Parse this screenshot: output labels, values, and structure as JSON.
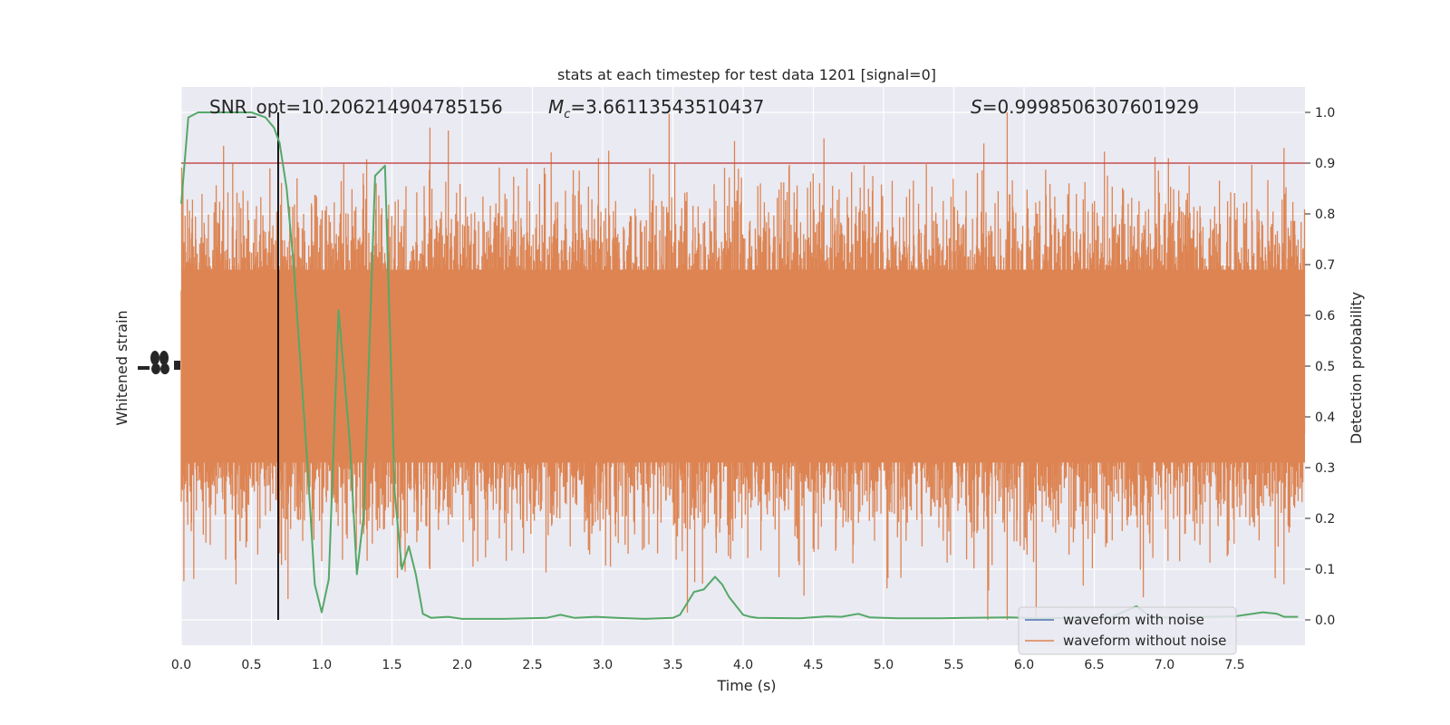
{
  "chart_data": {
    "type": "line",
    "title": "stats at each timestep for test data 1201 [signal=0]",
    "xlabel": "Time (s)",
    "ylabel_left": "Whitened strain",
    "ylabel_right": "Detection probability",
    "xlim": [
      0,
      8
    ],
    "ylim_right": [
      -0.05,
      1.05
    ],
    "x_ticks": [
      0.0,
      0.5,
      1.0,
      1.5,
      2.0,
      2.5,
      3.0,
      3.5,
      4.0,
      4.5,
      5.0,
      5.5,
      6.0,
      6.5,
      7.0,
      7.5
    ],
    "x_tick_labels": [
      "0.0",
      "0.5",
      "1.0",
      "1.5",
      "2.0",
      "2.5",
      "3.0",
      "3.5",
      "4.0",
      "4.5",
      "5.0",
      "5.5",
      "6.0",
      "6.5",
      "7.0",
      "7.5"
    ],
    "y_right_ticks": [
      0.0,
      0.1,
      0.2,
      0.3,
      0.4,
      0.5,
      0.6,
      0.7,
      0.8,
      0.9,
      1.0
    ],
    "y_right_tick_labels": [
      "0.0",
      "0.1",
      "0.2",
      "0.3",
      "0.4",
      "0.5",
      "0.6",
      "0.7",
      "0.8",
      "0.9",
      "1.0"
    ],
    "grid": true,
    "legend_position": "lower-right",
    "annotations": {
      "snr": "SNR_opt=10.206214904785156",
      "mc_symbol": "M",
      "mc_sub": "c",
      "mc_value": "=3.66113543510437",
      "s_symbol": "S",
      "s_value": "=0.9998506307601929"
    },
    "threshold": 0.9,
    "marker_time": 0.69,
    "series": [
      {
        "name": "waveform with noise",
        "color": "#4c72b0",
        "values": []
      },
      {
        "name": "waveform without noise",
        "color": "#dd8452",
        "style": "dense-noise",
        "center": 0.5,
        "typical_half_range": 0.21,
        "peak_range": [
          0.0,
          1.0
        ]
      },
      {
        "color": "#55a868",
        "x": [
          0.0,
          0.05,
          0.12,
          0.2,
          0.3,
          0.4,
          0.5,
          0.6,
          0.66,
          0.7,
          0.75,
          0.8,
          0.9,
          0.95,
          1.0,
          1.05,
          1.12,
          1.2,
          1.25,
          1.3,
          1.38,
          1.45,
          1.52,
          1.57,
          1.62,
          1.67,
          1.72,
          1.78,
          1.9,
          2.0,
          2.3,
          2.6,
          2.7,
          2.8,
          2.95,
          3.1,
          3.3,
          3.5,
          3.55,
          3.65,
          3.72,
          3.8,
          3.85,
          3.9,
          4.0,
          4.05,
          4.1,
          4.4,
          4.6,
          4.7,
          4.82,
          4.9,
          5.1,
          5.4,
          5.6,
          5.9,
          6.1,
          6.4,
          6.6,
          6.8,
          6.9,
          7.1,
          7.3,
          7.5,
          7.7,
          7.8,
          7.85,
          7.95
        ],
        "values": [
          0.82,
          0.99,
          1.0,
          1.0,
          1.0,
          1.0,
          1.0,
          0.99,
          0.97,
          0.94,
          0.85,
          0.7,
          0.3,
          0.07,
          0.015,
          0.08,
          0.61,
          0.35,
          0.09,
          0.21,
          0.875,
          0.895,
          0.25,
          0.1,
          0.145,
          0.09,
          0.012,
          0.004,
          0.006,
          0.002,
          0.002,
          0.004,
          0.01,
          0.004,
          0.006,
          0.004,
          0.002,
          0.004,
          0.01,
          0.055,
          0.06,
          0.085,
          0.07,
          0.045,
          0.01,
          0.006,
          0.004,
          0.003,
          0.007,
          0.006,
          0.012,
          0.005,
          0.003,
          0.003,
          0.004,
          0.005,
          0.003,
          0.004,
          0.003,
          0.027,
          0.006,
          0.004,
          0.006,
          0.007,
          0.015,
          0.012,
          0.006,
          0.006
        ]
      }
    ]
  }
}
